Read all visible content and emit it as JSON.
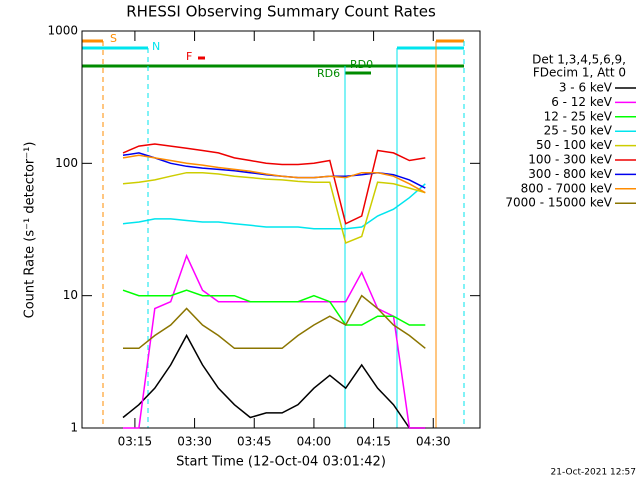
{
  "chart_data": {
    "type": "line",
    "title": "RHESSI Observing Summary Count Rates",
    "xlabel": "Start Time (12-Oct-04 03:01:42)",
    "ylabel": "Count Rate (s⁻¹ detector⁻¹)",
    "footer": "21-Oct-2021 12:57",
    "legend_title": [
      "Det 1,3,4,5,6,9,",
      "FDecim 1, Att 0"
    ],
    "legend": "right",
    "log_y": true,
    "xlim": [
      "03:01:42",
      "04:41:45"
    ],
    "xticks": [
      "03:15",
      "03:30",
      "03:45",
      "04:00",
      "04:15",
      "04:30"
    ],
    "ylim": [
      1,
      1000
    ],
    "yticks": [
      1,
      10,
      100,
      1000
    ],
    "annotations": [
      "S",
      "N",
      "F",
      "RD0",
      "RD6"
    ],
    "x": [
      "03:12",
      "03:16",
      "03:20",
      "03:24",
      "03:28",
      "03:32",
      "03:36",
      "03:40",
      "03:44",
      "03:48",
      "03:52",
      "03:56",
      "04:00",
      "04:04",
      "04:08",
      "04:12",
      "04:16",
      "04:20",
      "04:24",
      "04:28"
    ],
    "series": [
      {
        "name": "3 - 6 keV",
        "color": "#000000",
        "values": [
          1.2,
          1.5,
          2,
          3,
          5,
          3,
          2,
          1.5,
          1.2,
          1.3,
          1.3,
          1.5,
          2,
          2.5,
          2,
          3,
          2,
          1.5,
          1,
          1
        ]
      },
      {
        "name": "6 - 12 keV",
        "color": "#ff00ff",
        "values": [
          1,
          1,
          8,
          9,
          20,
          11,
          9,
          9,
          9,
          9,
          9,
          9,
          9,
          9,
          9,
          15,
          8,
          7,
          1,
          1
        ]
      },
      {
        "name": "12 - 25 keV",
        "color": "#00ff00",
        "values": [
          11,
          10,
          10,
          10,
          11,
          10,
          10,
          10,
          9,
          9,
          9,
          9,
          10,
          9,
          6,
          6,
          7,
          7,
          6,
          6
        ]
      },
      {
        "name": "25 - 50 keV",
        "color": "#00e5ee",
        "values": [
          35,
          36,
          38,
          38,
          37,
          36,
          36,
          35,
          34,
          33,
          33,
          33,
          32,
          32,
          32,
          33,
          40,
          45,
          55,
          70
        ]
      },
      {
        "name": "50 - 100 keV",
        "color": "#cdcd00",
        "values": [
          70,
          72,
          75,
          80,
          85,
          85,
          83,
          80,
          78,
          76,
          75,
          73,
          72,
          72,
          25,
          28,
          72,
          70,
          65,
          60
        ]
      },
      {
        "name": "100 - 300 keV",
        "color": "#ee0000",
        "values": [
          120,
          135,
          140,
          135,
          130,
          125,
          120,
          110,
          105,
          100,
          98,
          98,
          100,
          105,
          35,
          40,
          125,
          120,
          105,
          110
        ]
      },
      {
        "name": "300 - 800 keV",
        "color": "#0000ee",
        "values": [
          115,
          120,
          110,
          100,
          95,
          92,
          90,
          88,
          85,
          82,
          80,
          78,
          78,
          80,
          80,
          82,
          85,
          82,
          75,
          65
        ]
      },
      {
        "name": "800 - 7000 keV",
        "color": "#ff8c00",
        "values": [
          110,
          115,
          110,
          105,
          100,
          97,
          93,
          90,
          87,
          83,
          80,
          78,
          78,
          80,
          78,
          85,
          85,
          80,
          70,
          60
        ]
      },
      {
        "name": "7000 - 15000 keV",
        "color": "#8b7500",
        "values": [
          4,
          4,
          5,
          6,
          8,
          6,
          5,
          4,
          4,
          4,
          4,
          5,
          6,
          7,
          6,
          10,
          8,
          6,
          5,
          4
        ]
      }
    ]
  }
}
